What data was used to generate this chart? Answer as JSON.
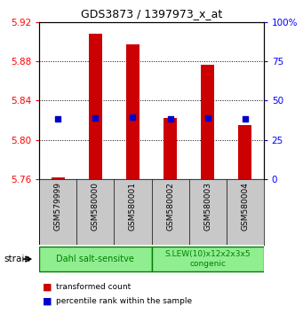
{
  "title": "GDS3873 / 1397973_x_at",
  "samples": [
    "GSM579999",
    "GSM580000",
    "GSM580001",
    "GSM580002",
    "GSM580003",
    "GSM580004"
  ],
  "red_values": [
    5.762,
    5.908,
    5.897,
    5.822,
    5.876,
    5.815
  ],
  "blue_values": [
    5.821,
    5.822,
    5.823,
    5.821,
    5.822,
    5.821
  ],
  "base_value": 5.76,
  "ylim_left": [
    5.76,
    5.92
  ],
  "ylim_right": [
    0,
    100
  ],
  "yticks_left": [
    5.76,
    5.8,
    5.84,
    5.88,
    5.92
  ],
  "yticks_right": [
    0,
    25,
    50,
    75,
    100
  ],
  "ytick_labels_right": [
    "0",
    "25",
    "50",
    "75",
    "100%"
  ],
  "red_color": "#cc0000",
  "blue_color": "#0000cc",
  "bar_width": 0.35,
  "group1_label": "Dahl salt-sensitve",
  "group2_label": "S.LEW(10)x12x2x3x5\ncongenic",
  "group_color": "#90ee90",
  "group_edge_color": "#008000",
  "strain_label": "strain",
  "legend_red": "transformed count",
  "legend_blue": "percentile rank within the sample",
  "bg_color": "#ffffff",
  "plot_bg": "#ffffff",
  "sample_area_bg": "#c8c8c8"
}
